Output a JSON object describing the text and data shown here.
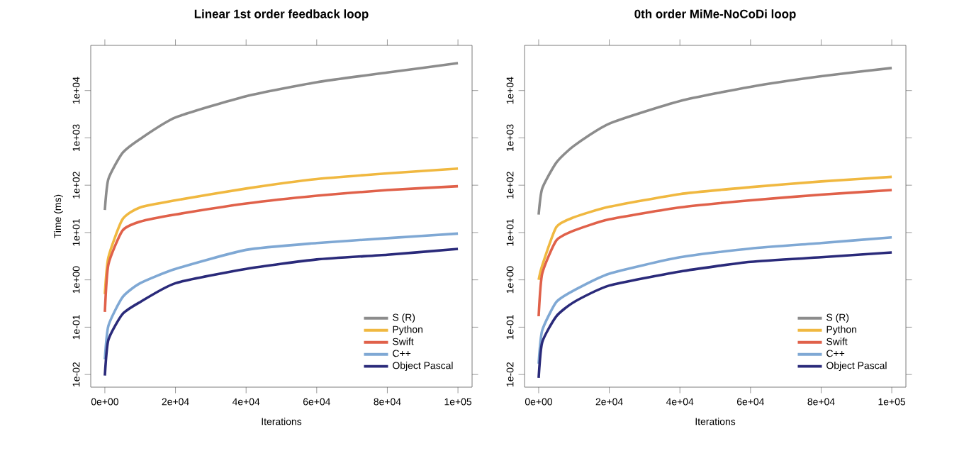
{
  "chart_data": [
    {
      "type": "line",
      "title": "Linear 1st order feedback loop",
      "xlabel": "Iterations",
      "ylabel": "Time (ms)",
      "log": "y",
      "legend": "bottom right",
      "marker": "none",
      "line_style": "solid",
      "xlim": [
        -4000,
        104000
      ],
      "ylim": [
        0.0054,
        90000
      ],
      "xticks": [
        {
          "value": 0,
          "label": "0e+00"
        },
        {
          "value": 20000,
          "label": "2e+04"
        },
        {
          "value": 40000,
          "label": "4e+04"
        },
        {
          "value": 60000,
          "label": "6e+04"
        },
        {
          "value": 80000,
          "label": "8e+04"
        },
        {
          "value": 100000,
          "label": "1e+05"
        }
      ],
      "yticks": [
        {
          "value": 0.01,
          "label": "1e-02"
        },
        {
          "value": 0.1,
          "label": "1e-01"
        },
        {
          "value": 1,
          "label": "1e+00"
        },
        {
          "value": 10,
          "label": "1e+01"
        },
        {
          "value": 100,
          "label": "1e+02"
        },
        {
          "value": 1000,
          "label": "1e+03"
        },
        {
          "value": 10000,
          "label": "1e+04"
        }
      ],
      "x": [
        0,
        1000,
        5000,
        10000,
        20000,
        40000,
        60000,
        80000,
        100000
      ],
      "series": [
        {
          "name": "S (R)",
          "color": "#8c8c8c",
          "values": [
            30,
            135,
            480,
            950,
            2700,
            7600,
            15000,
            24000,
            38000
          ]
        },
        {
          "name": "Python",
          "color": "#f0b840",
          "values": [
            0.5,
            3,
            19,
            34,
            48,
            85,
            135,
            178,
            224
          ]
        },
        {
          "name": "Swift",
          "color": "#e0614a",
          "values": [
            0.21,
            2.1,
            11,
            17,
            24,
            41,
            60,
            79,
            95
          ]
        },
        {
          "name": "C++",
          "color": "#7fa8d4",
          "values": [
            0.021,
            0.107,
            0.43,
            0.85,
            1.7,
            4.3,
            6,
            7.6,
            9.5
          ]
        },
        {
          "name": "Object Pascal",
          "color": "#2a2a7a",
          "values": [
            0.0095,
            0.054,
            0.19,
            0.34,
            0.85,
            1.7,
            2.7,
            3.4,
            4.5
          ]
        }
      ]
    },
    {
      "type": "line",
      "title": "0th order MiMe-NoCoDi loop",
      "xlabel": "Iterations",
      "log": "y",
      "legend": "bottom right",
      "marker": "none",
      "line_style": "solid",
      "xlim": [
        -4000,
        104000
      ],
      "ylim": [
        0.0054,
        90000
      ],
      "xticks": [
        {
          "value": 0,
          "label": "0e+00"
        },
        {
          "value": 20000,
          "label": "2e+04"
        },
        {
          "value": 40000,
          "label": "4e+04"
        },
        {
          "value": 60000,
          "label": "6e+04"
        },
        {
          "value": 80000,
          "label": "8e+04"
        },
        {
          "value": 100000,
          "label": "1e+05"
        }
      ],
      "yticks": [
        {
          "value": 0.01,
          "label": "1e-02"
        },
        {
          "value": 0.1,
          "label": "1e-01"
        },
        {
          "value": 1,
          "label": "1e+00"
        },
        {
          "value": 10,
          "label": "1e+01"
        },
        {
          "value": 100,
          "label": "1e+02"
        },
        {
          "value": 1000,
          "label": "1e+03"
        },
        {
          "value": 10000,
          "label": "1e+04"
        }
      ],
      "x": [
        0,
        1000,
        5000,
        10000,
        20000,
        40000,
        60000,
        80000,
        100000
      ],
      "series": [
        {
          "name": "S (R)",
          "color": "#8c8c8c",
          "values": [
            24,
            85,
            300,
            680,
            2000,
            6000,
            12000,
            20000,
            30000
          ]
        },
        {
          "name": "Python",
          "color": "#f0b840",
          "values": [
            1.0,
            2,
            13,
            21,
            35,
            65,
            91,
            120,
            150
          ]
        },
        {
          "name": "Swift",
          "color": "#e0614a",
          "values": [
            0.17,
            1.35,
            6.8,
            11,
            19,
            34,
            48,
            63,
            79
          ]
        },
        {
          "name": "C++",
          "color": "#7fa8d4",
          "values": [
            0.017,
            0.085,
            0.34,
            0.6,
            1.35,
            3,
            4.6,
            6,
            7.9
          ]
        },
        {
          "name": "Object Pascal",
          "color": "#2a2a7a",
          "values": [
            0.0085,
            0.048,
            0.17,
            0.34,
            0.76,
            1.5,
            2.4,
            3,
            3.8
          ]
        }
      ]
    }
  ]
}
